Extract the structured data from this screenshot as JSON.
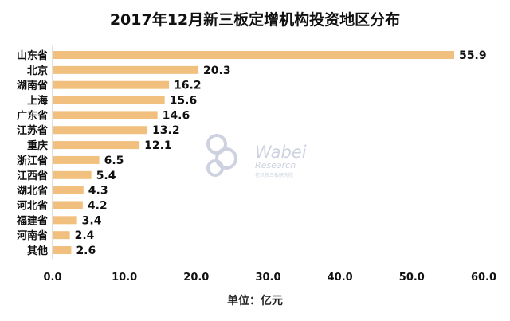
{
  "chart_data": {
    "type": "bar",
    "orientation": "horizontal",
    "title": "2017年12月新三板定增机构投资地区分布",
    "xlabel": "单位：亿元",
    "ylabel": "",
    "categories": [
      "山东省",
      "北京",
      "湖南省",
      "上海",
      "广东省",
      "江苏省",
      "重庆",
      "浙江省",
      "江西省",
      "湖北省",
      "河北省",
      "福建省",
      "河南省",
      "其他"
    ],
    "values": [
      55.9,
      20.3,
      16.2,
      15.6,
      14.6,
      13.2,
      12.1,
      6.5,
      5.4,
      4.3,
      4.2,
      3.4,
      2.4,
      2.6
    ],
    "value_labels": [
      "55.9",
      "20.3",
      "16.2",
      "15.6",
      "14.6",
      "13.2",
      "12.1",
      "6.5",
      "5.4",
      "4.3",
      "4.2",
      "3.4",
      "2.4",
      "2.6"
    ],
    "xlim": [
      0,
      60
    ],
    "xticks": [
      "0.0",
      "10.0",
      "20.0",
      "30.0",
      "40.0",
      "50.0",
      "60.0"
    ],
    "grid": false,
    "legend": "none",
    "bar_color": "#F2C07E"
  },
  "watermark": {
    "brand": "Wabei",
    "sub": "Research",
    "tagline": "挖贝新三板研究院",
    "icon": "logo-3-mark",
    "color": "#C9CEDD"
  }
}
